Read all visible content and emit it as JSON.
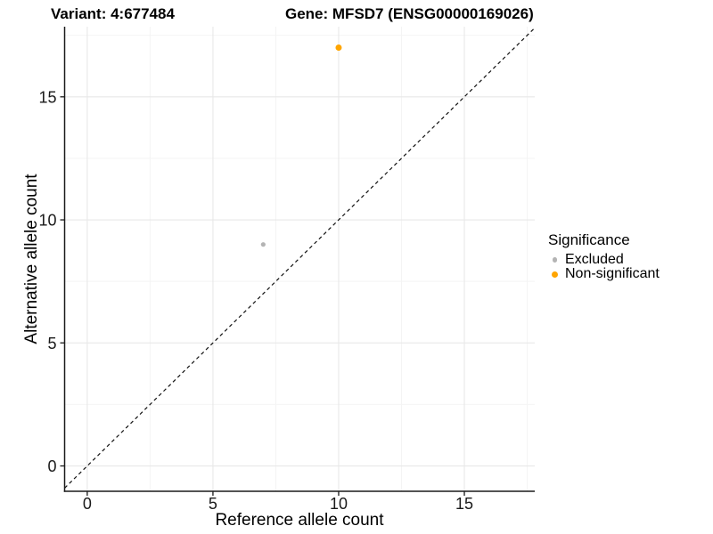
{
  "figure": {
    "title_left": "Variant: 4:677484",
    "title_right": "Gene: MFSD7 (ENSG00000169026)"
  },
  "chart_data": {
    "type": "scatter",
    "xlabel": "Reference allele count",
    "ylabel": "Alternative allele count",
    "xlim": [
      -0.9,
      17.8
    ],
    "ylim": [
      -1.03,
      17.85
    ],
    "xticks": [
      0,
      5,
      10,
      15
    ],
    "yticks": [
      0,
      5,
      10,
      15
    ],
    "xticks_minor": [
      2.5,
      7.5,
      12.5,
      17.5
    ],
    "yticks_minor": [
      2.5,
      7.5,
      12.5,
      17.5
    ],
    "grid": "major+minor",
    "legend_position": "right",
    "legend_title": "Significance",
    "identity_line": {
      "slope": 1,
      "intercept": 0,
      "linetype": "dashed",
      "color": "#111111"
    },
    "series": [
      {
        "name": "Excluded",
        "color": "#b4b4b4",
        "point_radius": 2.6,
        "points": [
          {
            "x": 7,
            "y": 9
          }
        ]
      },
      {
        "name": "Non-significant",
        "color": "#ffa500",
        "point_radius": 3.5,
        "points": [
          {
            "x": 10,
            "y": 17
          }
        ]
      }
    ],
    "colors": {
      "background": "#ffffff",
      "grid_major": "#e8e8e8",
      "grid_minor": "#f4f4f4",
      "axis_line": "#1a1a1a",
      "tick_text": "#1a1a1a"
    }
  }
}
